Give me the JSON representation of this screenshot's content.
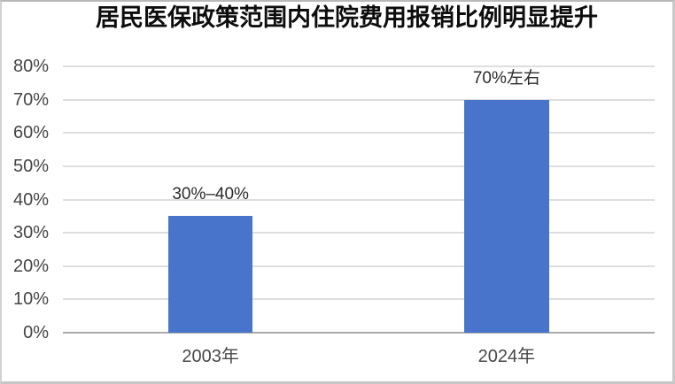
{
  "chart_data": {
    "type": "bar",
    "title": "居民医保政策范围内住院费用报销比例明显提升",
    "categories": [
      "2003年",
      "2024年"
    ],
    "values": [
      35,
      70
    ],
    "data_labels": [
      "30%–40%",
      "70%左右"
    ],
    "xlabel": "",
    "ylabel": "",
    "ylim": [
      0,
      80
    ],
    "yticks": [
      0,
      10,
      20,
      30,
      40,
      50,
      60,
      70,
      80
    ],
    "ytick_labels": [
      "0%",
      "10%",
      "20%",
      "30%",
      "40%",
      "50%",
      "60%",
      "70%",
      "80%"
    ],
    "grid": true,
    "legend": false,
    "bar_color": "#4875cb"
  }
}
